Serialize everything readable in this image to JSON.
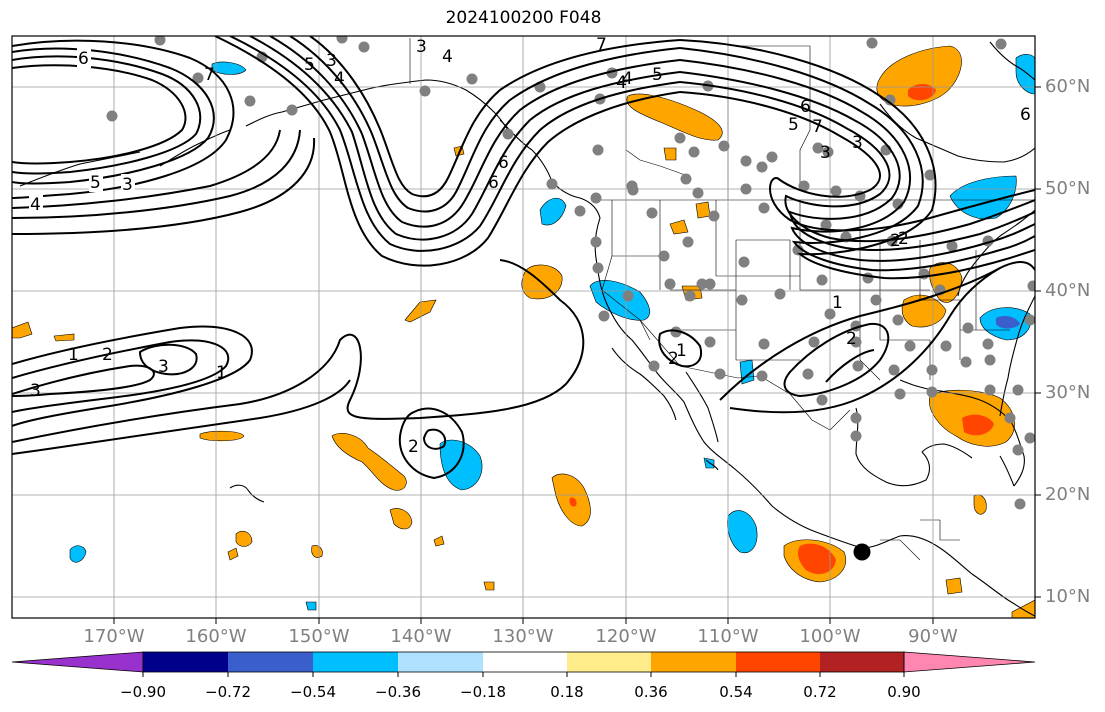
{
  "title": "2024100200 F048",
  "lon_labels": [
    "170°W",
    "160°W",
    "150°W",
    "140°W",
    "130°W",
    "120°W",
    "110°W",
    "100°W",
    "90°W"
  ],
  "lat_labels": [
    "60°N",
    "50°N",
    "40°N",
    "30°N",
    "20°N",
    "10°N"
  ],
  "colorbar": {
    "ticks": [
      "−0.90",
      "−0.72",
      "−0.54",
      "−0.36",
      "−0.18",
      "0.18",
      "0.36",
      "0.54",
      "0.72",
      "0.90"
    ],
    "colors": [
      "#9932cc",
      "#00008b",
      "#3a5fcd",
      "#00bfff",
      "#b0e2ff",
      "#ffffff",
      "#ffec8b",
      "#ffa500",
      "#ff4500",
      "#b22222",
      "#ff86b0"
    ]
  },
  "contour_labels": [
    "6",
    "5",
    "3",
    "4",
    "3",
    "4",
    "5",
    "7",
    "6",
    "7",
    "6",
    "5",
    "4",
    "3",
    "7",
    "4",
    "3",
    "6",
    "6",
    "5",
    "4",
    "3",
    "2",
    "2",
    "2",
    "1",
    "2",
    "3",
    "1",
    "3",
    "1",
    "2",
    "1",
    "2"
  ],
  "fill_colors": {
    "orange": "#ffa500",
    "red": "#ff4500",
    "blue": "#00bfff",
    "dark_blue": "#3a5fcd"
  }
}
